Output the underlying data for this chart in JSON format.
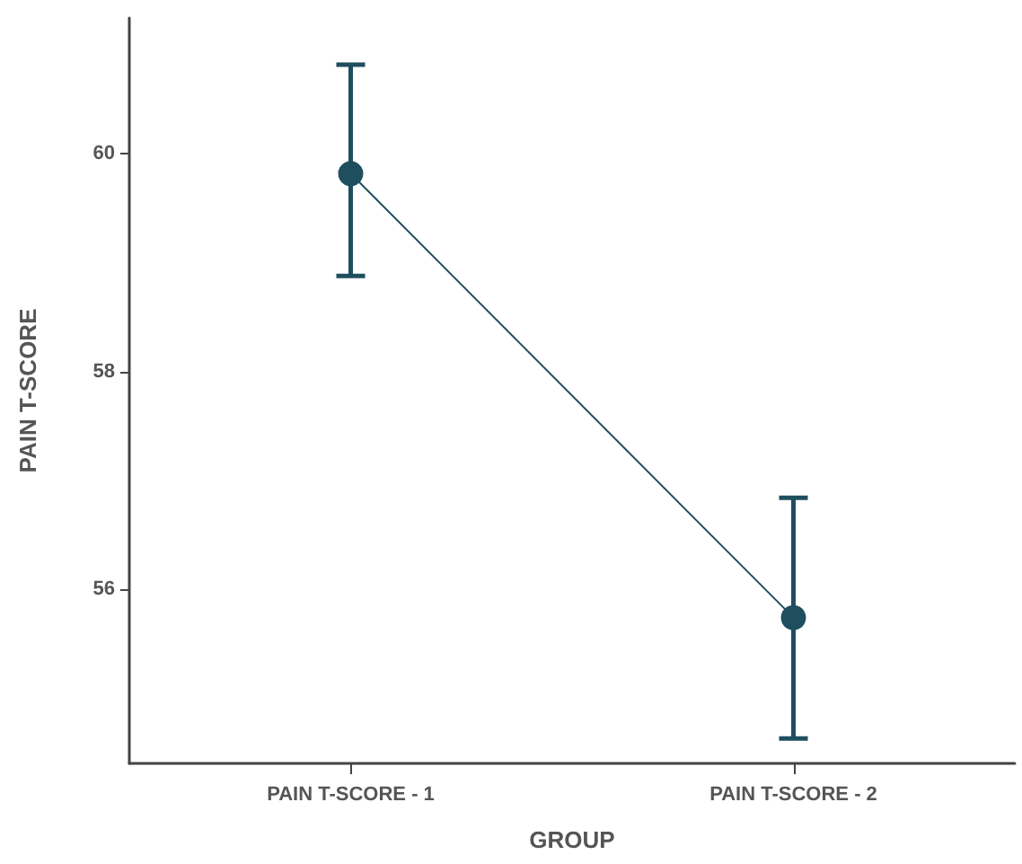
{
  "chart_data": {
    "type": "line",
    "xlabel": "GROUP",
    "ylabel": "PAIN T-SCORE",
    "categories": [
      "PAIN T-SCORE - 1",
      "PAIN T-SCORE - 2"
    ],
    "series": [
      {
        "color": "#1f4e5f",
        "values": [
          59.82,
          55.74
        ],
        "errors": [
          [
            58.88,
            60.82
          ],
          [
            54.63,
            56.84
          ]
        ]
      }
    ],
    "ylim": [
      54.4,
      61.25
    ],
    "yticks": [
      56,
      58,
      60
    ],
    "grid": false,
    "marker": "circle",
    "line_style": "solid"
  }
}
